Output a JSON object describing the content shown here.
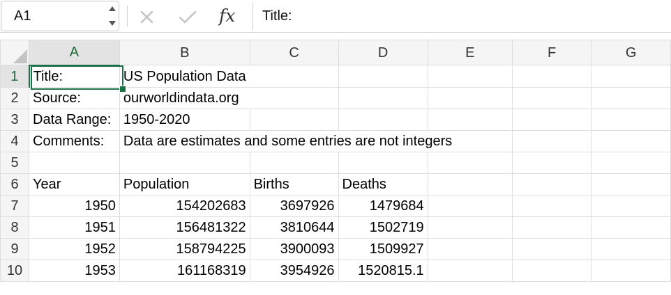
{
  "name_box": "A1",
  "formula_bar": {
    "fx_label": "fx",
    "value": "Title:"
  },
  "columns": [
    "A",
    "B",
    "C",
    "D",
    "E",
    "F",
    "G"
  ],
  "rows": [
    {
      "num": "1",
      "cells": [
        "Title:",
        "US Population Data",
        "",
        "",
        "",
        "",
        ""
      ]
    },
    {
      "num": "2",
      "cells": [
        "Source:",
        "ourworldindata.org",
        "",
        "",
        "",
        "",
        ""
      ]
    },
    {
      "num": "3",
      "cells": [
        "Data Range:",
        "1950-2020",
        "",
        "",
        "",
        "",
        ""
      ]
    },
    {
      "num": "4",
      "cells": [
        "Comments:",
        "Data are estimates and some entries are not integers",
        "",
        "",
        "",
        "",
        ""
      ]
    },
    {
      "num": "5",
      "cells": [
        "",
        "",
        "",
        "",
        "",
        "",
        ""
      ]
    },
    {
      "num": "6",
      "cells": [
        "Year",
        "Population",
        "Births",
        "Deaths",
        "",
        "",
        ""
      ]
    },
    {
      "num": "7",
      "cells": [
        "1950",
        "154202683",
        "3697926",
        "1479684",
        "",
        "",
        ""
      ]
    },
    {
      "num": "8",
      "cells": [
        "1951",
        "156481322",
        "3810644",
        "1502719",
        "",
        "",
        ""
      ]
    },
    {
      "num": "9",
      "cells": [
        "1952",
        "158794225",
        "3900093",
        "1509927",
        "",
        "",
        ""
      ]
    },
    {
      "num": "10",
      "cells": [
        "1953",
        "161168319",
        "3954926",
        "1520815.1",
        "",
        "",
        ""
      ]
    }
  ],
  "colors": {
    "selection": "#1e7145",
    "header_bg": "#f5f5f5",
    "gridline": "#dedede"
  },
  "icons": {
    "cancel": "x-icon",
    "confirm": "check-icon",
    "stepper": "stepper-icon"
  }
}
